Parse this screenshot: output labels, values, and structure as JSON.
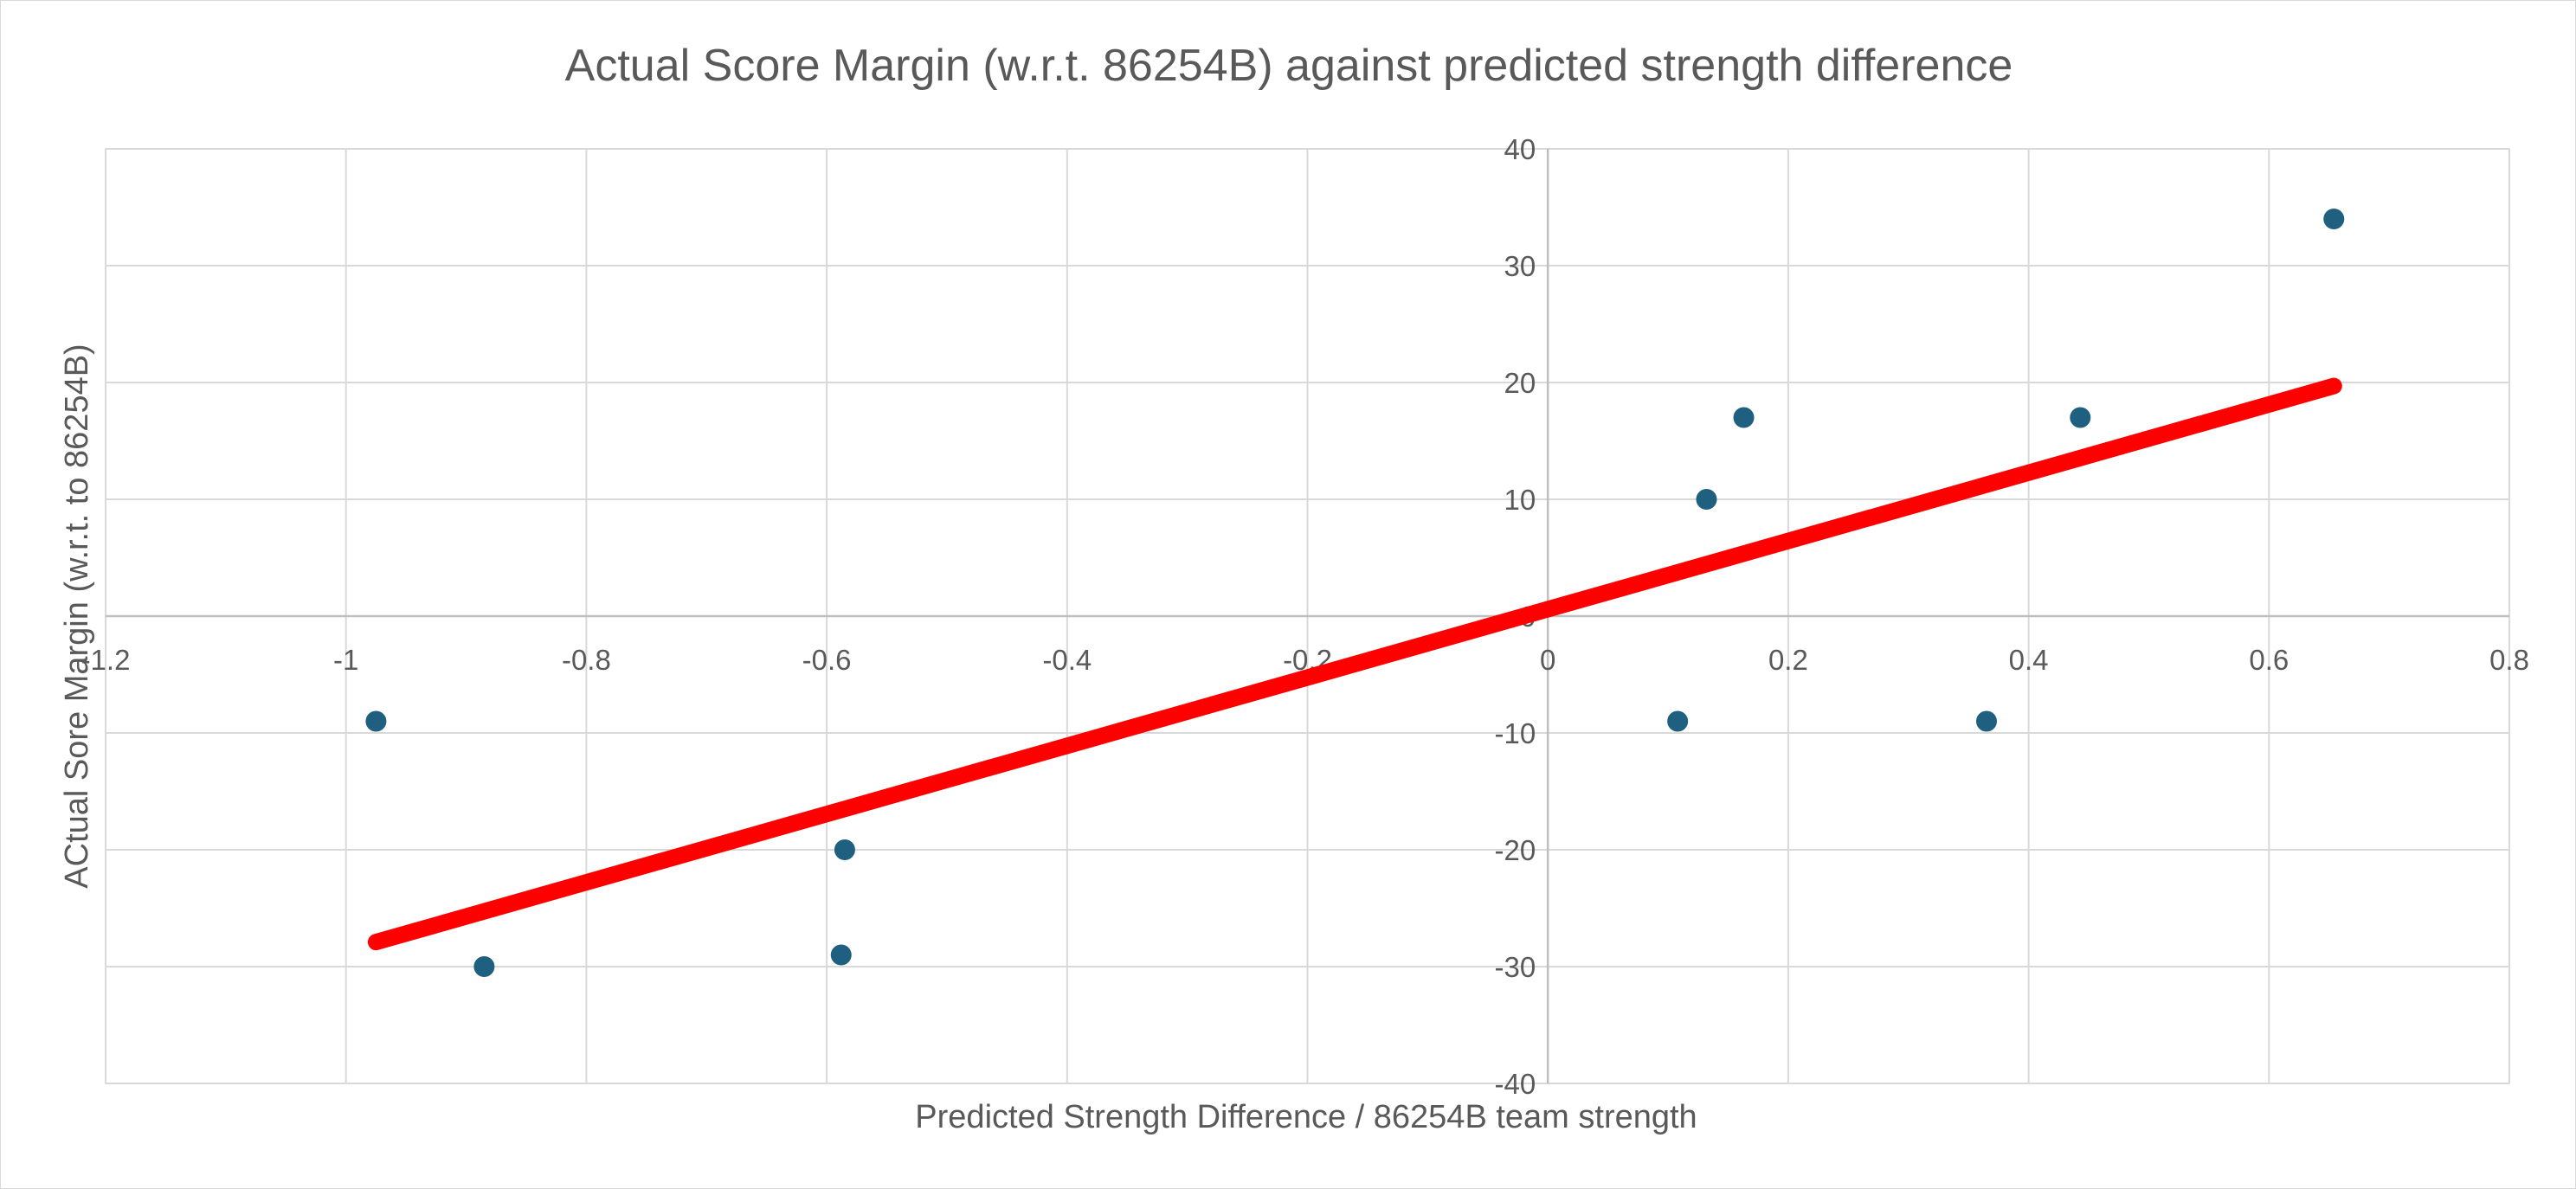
{
  "chart_data": {
    "type": "scatter",
    "title": "Actual Score Margin (w.r.t. 86254B) against predicted strength difference",
    "xlabel": "Predicted Strength Difference / 86254B team strength",
    "ylabel": "ACtual Sore Margin (w.r.t. to 86254B)",
    "xlim": [
      -1.2,
      0.8
    ],
    "ylim": [
      -40,
      40
    ],
    "x_ticks": [
      -1.2,
      -1,
      -0.8,
      -0.6,
      -0.4,
      -0.2,
      0,
      0.2,
      0.4,
      0.6,
      0.8
    ],
    "y_ticks": [
      -40,
      -30,
      -20,
      -10,
      0,
      10,
      20,
      30,
      40
    ],
    "grid": true,
    "legend": "none",
    "series": [
      {
        "points": [
          {
            "x": -0.975,
            "y": -9
          },
          {
            "x": -0.885,
            "y": -30
          },
          {
            "x": -0.585,
            "y": -20
          },
          {
            "x": -0.588,
            "y": -29
          },
          {
            "x": 0.108,
            "y": -9
          },
          {
            "x": 0.132,
            "y": 10
          },
          {
            "x": 0.163,
            "y": 17
          },
          {
            "x": 0.365,
            "y": -9
          },
          {
            "x": 0.443,
            "y": 17
          },
          {
            "x": 0.654,
            "y": 34
          }
        ],
        "color": "#1f5f7f"
      }
    ],
    "trendline": {
      "x": [
        -0.975,
        0.654
      ],
      "y": [
        -27.9,
        19.7
      ],
      "color": "#ff0000"
    }
  }
}
